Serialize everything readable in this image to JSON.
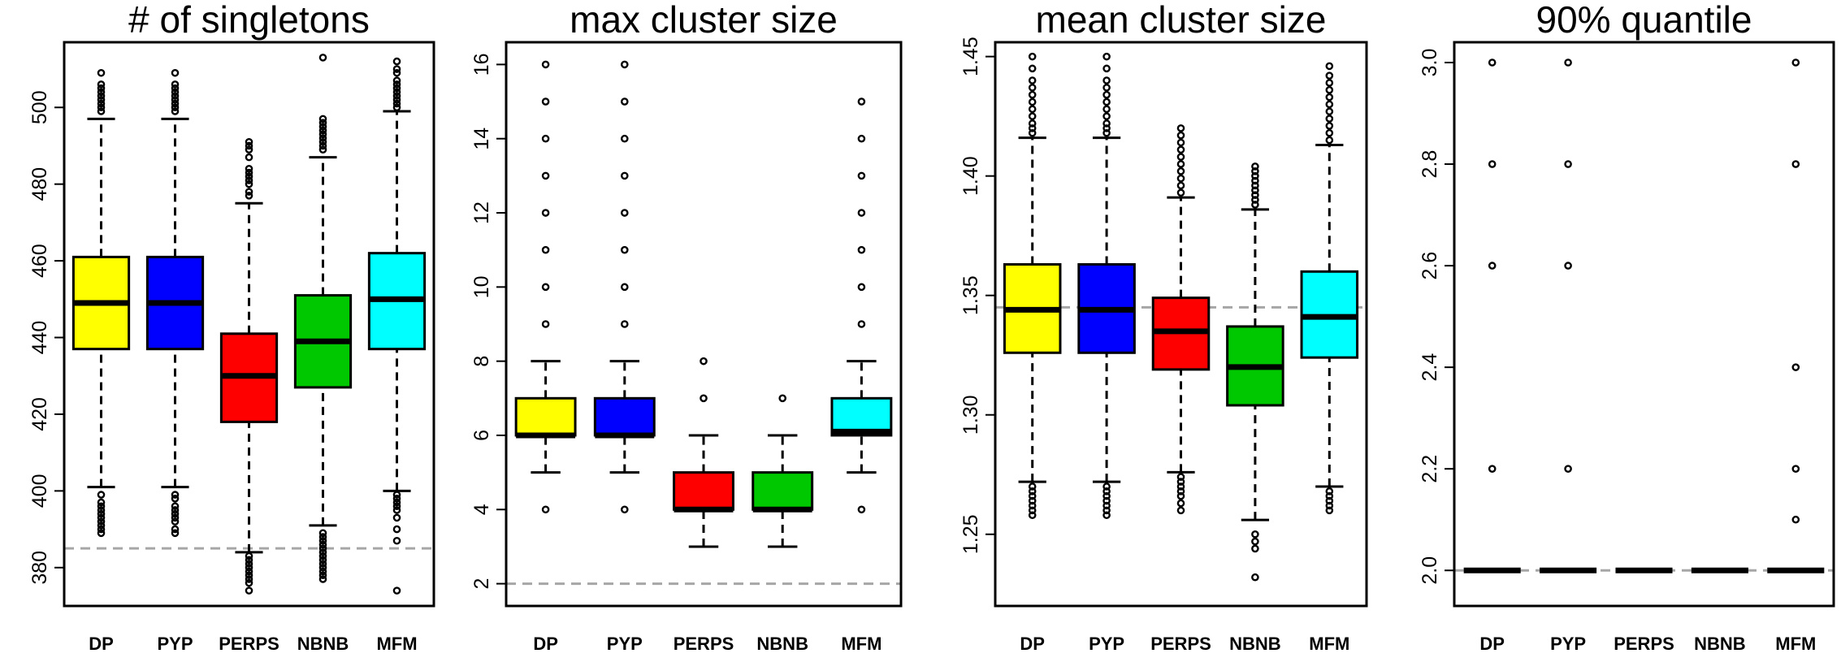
{
  "chart_data": [
    {
      "type": "box",
      "title": "# of singletons",
      "ylim": [
        370,
        517
      ],
      "yticks": [
        380,
        400,
        420,
        440,
        460,
        480,
        500
      ],
      "reference_line": 385,
      "categories": [
        "DP",
        "PYP",
        "PERPS",
        "NBNB",
        "MFM"
      ],
      "colors": [
        "#ffff00",
        "#0000ff",
        "#ff0000",
        "#00c800",
        "#00ffff"
      ],
      "boxes": [
        {
          "whisker_low": 401,
          "q1": 437,
          "median": 449,
          "q3": 461,
          "whisker_high": 497,
          "outliers": [
            389,
            390,
            391,
            392,
            393,
            394,
            395,
            396,
            397,
            399,
            499,
            500,
            501,
            502,
            503,
            504,
            505,
            506,
            509
          ]
        },
        {
          "whisker_low": 401,
          "q1": 437,
          "median": 449,
          "q3": 461,
          "whisker_high": 497,
          "outliers": [
            389,
            390,
            392,
            393,
            394,
            395,
            396,
            398,
            399,
            499,
            500,
            501,
            502,
            503,
            504,
            505,
            506,
            509
          ]
        },
        {
          "whisker_low": 384,
          "q1": 418,
          "median": 430,
          "q3": 441,
          "whisker_high": 475,
          "outliers": [
            374,
            376,
            377,
            378,
            379,
            380,
            381,
            382,
            383,
            477,
            478,
            480,
            481,
            482,
            483,
            484,
            487,
            489,
            490,
            491
          ]
        },
        {
          "whisker_low": 391,
          "q1": 427,
          "median": 439,
          "q3": 451,
          "whisker_high": 487,
          "outliers": [
            377,
            378,
            379,
            380,
            381,
            382,
            383,
            384,
            385,
            386,
            387,
            388,
            389,
            489,
            490,
            491,
            492,
            493,
            494,
            495,
            496,
            497,
            513
          ]
        },
        {
          "whisker_low": 400,
          "q1": 437,
          "median": 450,
          "q3": 462,
          "whisker_high": 499,
          "outliers": [
            374,
            387,
            390,
            393,
            395,
            396,
            397,
            398,
            399,
            500,
            501,
            502,
            503,
            504,
            505,
            506,
            507,
            509,
            510,
            512
          ]
        }
      ]
    },
    {
      "type": "box",
      "title": "max cluster size",
      "ylim": [
        1.4,
        16.6
      ],
      "yticks": [
        2,
        4,
        6,
        8,
        10,
        12,
        14,
        16
      ],
      "reference_line": 2,
      "categories": [
        "DP",
        "PYP",
        "PERPS",
        "NBNB",
        "MFM"
      ],
      "colors": [
        "#ffff00",
        "#0000ff",
        "#ff0000",
        "#00c800",
        "#00ffff"
      ],
      "boxes": [
        {
          "whisker_low": 5,
          "q1": 6,
          "median": 6,
          "q3": 7,
          "whisker_high": 8,
          "outliers": [
            4,
            9,
            10,
            11,
            12,
            13,
            14,
            15,
            16
          ]
        },
        {
          "whisker_low": 5,
          "q1": 6,
          "median": 6,
          "q3": 7,
          "whisker_high": 8,
          "outliers": [
            4,
            9,
            10,
            11,
            12,
            13,
            14,
            15,
            16
          ]
        },
        {
          "whisker_low": 3,
          "q1": 4,
          "median": 4,
          "q3": 5,
          "whisker_high": 6,
          "outliers": [
            7,
            8
          ]
        },
        {
          "whisker_low": 3,
          "q1": 4,
          "median": 4,
          "q3": 5,
          "whisker_high": 6,
          "outliers": [
            7
          ]
        },
        {
          "whisker_low": 5,
          "q1": 6,
          "median": 6.1,
          "q3": 7,
          "whisker_high": 8,
          "outliers": [
            4,
            9,
            10,
            11,
            12,
            13,
            14,
            15
          ]
        }
      ]
    },
    {
      "type": "box",
      "title": "mean cluster size",
      "ylim": [
        1.22,
        1.456
      ],
      "yticks": [
        1.25,
        1.3,
        1.35,
        1.4,
        1.45
      ],
      "ytick_labels": [
        "1.25",
        "1.30",
        "1.35",
        "1.40",
        "1.45"
      ],
      "reference_line": 1.345,
      "categories": [
        "DP",
        "PYP",
        "PERPS",
        "NBNB",
        "MFM"
      ],
      "colors": [
        "#ffff00",
        "#0000ff",
        "#ff0000",
        "#00c800",
        "#00ffff"
      ],
      "boxes": [
        {
          "whisker_low": 1.272,
          "q1": 1.326,
          "median": 1.344,
          "q3": 1.363,
          "whisker_high": 1.416,
          "outliers": [
            1.258,
            1.26,
            1.262,
            1.264,
            1.266,
            1.268,
            1.27,
            1.418,
            1.42,
            1.422,
            1.425,
            1.428,
            1.431,
            1.434,
            1.437,
            1.44,
            1.445,
            1.45
          ]
        },
        {
          "whisker_low": 1.272,
          "q1": 1.326,
          "median": 1.344,
          "q3": 1.363,
          "whisker_high": 1.416,
          "outliers": [
            1.258,
            1.26,
            1.262,
            1.264,
            1.266,
            1.268,
            1.27,
            1.418,
            1.42,
            1.422,
            1.425,
            1.428,
            1.431,
            1.434,
            1.437,
            1.44,
            1.445,
            1.45
          ]
        },
        {
          "whisker_low": 1.276,
          "q1": 1.319,
          "median": 1.335,
          "q3": 1.349,
          "whisker_high": 1.391,
          "outliers": [
            1.26,
            1.263,
            1.266,
            1.268,
            1.27,
            1.272,
            1.274,
            1.393,
            1.396,
            1.399,
            1.402,
            1.405,
            1.408,
            1.411,
            1.414,
            1.417,
            1.42
          ]
        },
        {
          "whisker_low": 1.256,
          "q1": 1.304,
          "median": 1.32,
          "q3": 1.337,
          "whisker_high": 1.386,
          "outliers": [
            1.232,
            1.244,
            1.247,
            1.25,
            1.388,
            1.39,
            1.392,
            1.394,
            1.396,
            1.398,
            1.4,
            1.402,
            1.404
          ]
        },
        {
          "whisker_low": 1.27,
          "q1": 1.324,
          "median": 1.341,
          "q3": 1.36,
          "whisker_high": 1.413,
          "outliers": [
            1.26,
            1.262,
            1.264,
            1.266,
            1.268,
            1.415,
            1.418,
            1.421,
            1.424,
            1.427,
            1.43,
            1.433,
            1.436,
            1.439,
            1.442,
            1.446
          ]
        }
      ]
    },
    {
      "type": "box",
      "title": "90% quantile",
      "ylim": [
        1.93,
        3.04
      ],
      "yticks": [
        2.0,
        2.2,
        2.4,
        2.6,
        2.8,
        3.0
      ],
      "ytick_labels": [
        "2.0",
        "2.2",
        "2.4",
        "2.6",
        "2.8",
        "3.0"
      ],
      "reference_line": 2,
      "categories": [
        "DP",
        "PYP",
        "PERPS",
        "NBNB",
        "MFM"
      ],
      "colors": [
        "#ffff00",
        "#0000ff",
        "#ff0000",
        "#00c800",
        "#00ffff"
      ],
      "boxes": [
        {
          "whisker_low": 2,
          "q1": 2,
          "median": 2,
          "q3": 2,
          "whisker_high": 2,
          "outliers": [
            2.2,
            2.6,
            2.8,
            3.0
          ]
        },
        {
          "whisker_low": 2,
          "q1": 2,
          "median": 2,
          "q3": 2,
          "whisker_high": 2,
          "outliers": [
            2.2,
            2.6,
            2.8,
            3.0
          ]
        },
        {
          "whisker_low": 2,
          "q1": 2,
          "median": 2,
          "q3": 2,
          "whisker_high": 2,
          "outliers": []
        },
        {
          "whisker_low": 2,
          "q1": 2,
          "median": 2,
          "q3": 2,
          "whisker_high": 2,
          "outliers": []
        },
        {
          "whisker_low": 2,
          "q1": 2,
          "median": 2,
          "q3": 2,
          "whisker_high": 2,
          "outliers": [
            2.1,
            2.2,
            2.4,
            2.8,
            3.0
          ]
        }
      ]
    }
  ]
}
